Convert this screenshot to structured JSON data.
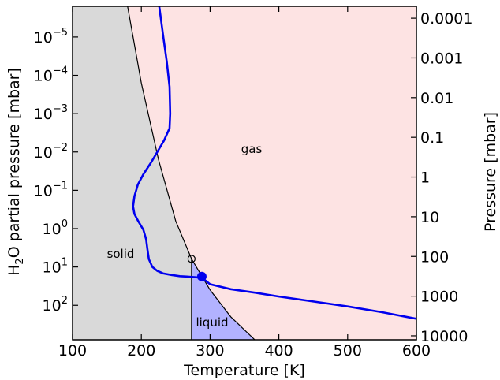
{
  "chart_data": {
    "type": "line",
    "xlabel": "Temperature [K]",
    "ylabel_left": "H2O partial pressure [mbar]",
    "ylabel_right": "Pressure [mbar]",
    "xlim": [
      100,
      600
    ],
    "ylim_left_log10": [
      2.9,
      -5.8
    ],
    "ylim_right_log10": [
      4.1,
      -4.3
    ],
    "x_ticks": [
      "100",
      "200",
      "300",
      "400",
      "500",
      "600"
    ],
    "y_left_ticks": [
      {
        "base": "10",
        "exp": "−5",
        "log": -5
      },
      {
        "base": "10",
        "exp": "−4",
        "log": -4
      },
      {
        "base": "10",
        "exp": "−3",
        "log": -3
      },
      {
        "base": "10",
        "exp": "−2",
        "log": -2
      },
      {
        "base": "10",
        "exp": "−1",
        "log": -1
      },
      {
        "base": "10",
        "exp": "0",
        "log": 0
      },
      {
        "base": "10",
        "exp": "1",
        "log": 1
      },
      {
        "base": "10",
        "exp": "2",
        "log": 2
      }
    ],
    "y_right_ticks": [
      {
        "label": "0.0001",
        "log": -4
      },
      {
        "label": "0.001",
        "log": -3
      },
      {
        "label": "0.01",
        "log": -2
      },
      {
        "label": "0.1",
        "log": -1
      },
      {
        "label": "1",
        "log": 0
      },
      {
        "label": "10",
        "log": 1
      },
      {
        "label": "100",
        "log": 2
      },
      {
        "label": "1000",
        "log": 3
      },
      {
        "label": "10000",
        "log": 4
      }
    ],
    "regions": {
      "solid": "solid",
      "gas": "gas",
      "liquid": "liquid"
    },
    "colors": {
      "solid_fill": "#d9d9d9",
      "gas_fill": "#fde3e3",
      "liquid_fill": "#b2b2ff",
      "profile_line": "#0000ee",
      "boundary": "#000000"
    },
    "triple_point": {
      "T": 273,
      "logP_h2o": 0.79
    },
    "surface_point": {
      "T": 288,
      "logP_h2o": 1.25
    },
    "critical_T_boundary": 273,
    "saturation_curve": {
      "T": [
        100,
        125,
        150,
        170,
        175,
        200,
        225,
        250,
        273,
        300,
        330,
        365
      ],
      "logP_h2o": [
        -18.5,
        -13.9,
        -9.6,
        -6.9,
        -6.3,
        -3.8,
        -1.8,
        -0.2,
        0.79,
        1.6,
        2.3,
        2.9
      ]
    },
    "series": [
      {
        "x": [
          226,
          232,
          237,
          241,
          242,
          241,
          233,
          215,
          203,
          195,
          190,
          188,
          190,
          196,
          203,
          207,
          209,
          211,
          216,
          223,
          232,
          244,
          256,
          266,
          288,
          300,
          330,
          365,
          400,
          450,
          500,
          550,
          600
        ],
        "y": [
          -5.8,
          -5.0,
          -4.35,
          -3.7,
          -3.0,
          -2.62,
          -2.3,
          -1.75,
          -1.42,
          -1.15,
          -0.85,
          -0.58,
          -0.38,
          -0.18,
          0.03,
          0.28,
          0.55,
          0.8,
          1.0,
          1.1,
          1.17,
          1.21,
          1.24,
          1.25,
          1.28,
          1.45,
          1.58,
          1.67,
          1.77,
          1.9,
          2.03,
          2.18,
          2.35
        ]
      }
    ]
  }
}
